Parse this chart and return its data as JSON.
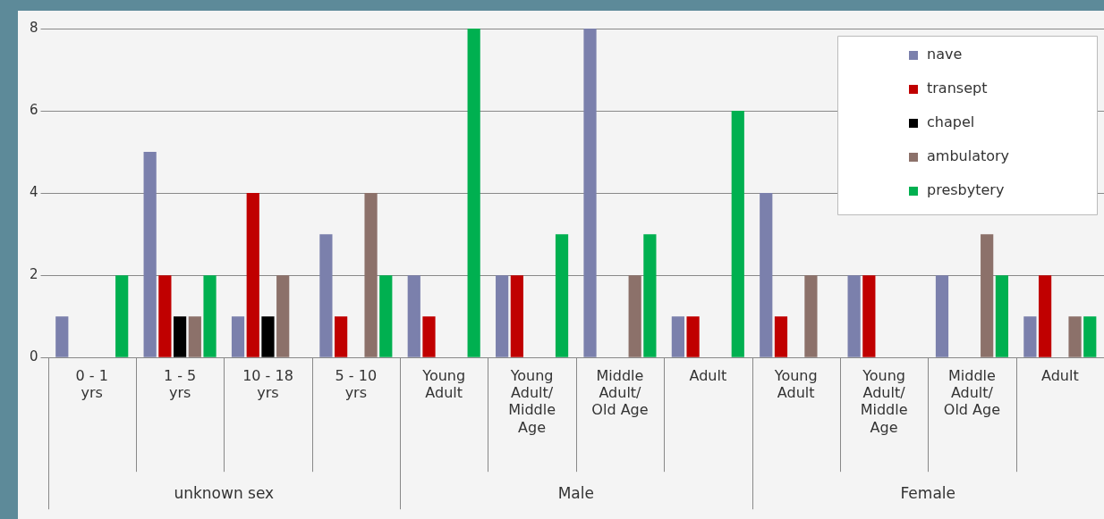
{
  "chart_data": {
    "type": "bar",
    "categories": [
      "0 - 1 yrs",
      "1 - 5 yrs",
      "10 - 18 yrs",
      "5 - 10 yrs",
      "Young Adult",
      "Young Adult/ Middle Age",
      "Middle Adult/ Old Age",
      "Adult",
      "Young Adult",
      "Young Adult/ Middle Age",
      "Middle Adult/ Old Age",
      "Adult"
    ],
    "series": [
      {
        "name": "nave",
        "color": "#7b80ac",
        "values": [
          1,
          5,
          1,
          3,
          2,
          2,
          8,
          1,
          4,
          2,
          2,
          1
        ]
      },
      {
        "name": "transept",
        "color": "#c00000",
        "values": [
          0,
          2,
          4,
          1,
          1,
          2,
          0,
          1,
          1,
          2,
          0,
          2
        ]
      },
      {
        "name": "chapel",
        "color": "#000000",
        "values": [
          0,
          1,
          1,
          0,
          0,
          0,
          0,
          0,
          0,
          0,
          0,
          0
        ]
      },
      {
        "name": "ambulatory",
        "color": "#8c716a",
        "values": [
          0,
          1,
          2,
          4,
          0,
          0,
          2,
          0,
          2,
          0,
          3,
          1
        ]
      },
      {
        "name": "presbytery",
        "color": "#00b050",
        "values": [
          2,
          2,
          0,
          2,
          8,
          3,
          3,
          6,
          0,
          0,
          2,
          1
        ]
      }
    ],
    "annotations": [
      "unknown sex",
      "Male",
      "Female"
    ],
    "ylim": [
      0,
      8
    ],
    "yticks": [
      0,
      2,
      4,
      6,
      8
    ],
    "grid": "y",
    "legend": "top right"
  }
}
